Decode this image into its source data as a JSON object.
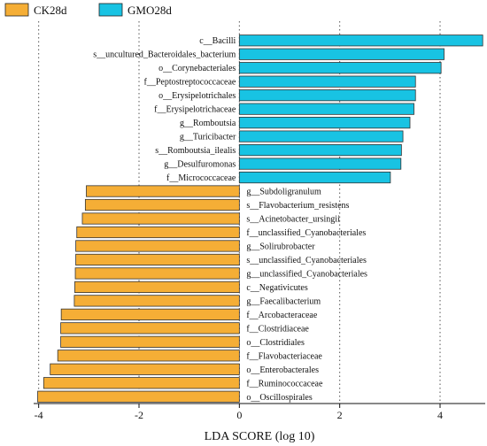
{
  "chart_data": {
    "type": "bar",
    "orientation": "horizontal",
    "xlabel": "LDA SCORE (log 10)",
    "xlim": [
      -4.1,
      4.9
    ],
    "xticks": [
      -4,
      -2,
      0,
      2,
      4
    ],
    "grid": "vertical dotted",
    "legend_position": "top-left",
    "legend": [
      {
        "name": "CK28d",
        "color": "#F5AE36"
      },
      {
        "name": "GMO28d",
        "color": "#18C3E3"
      }
    ],
    "series": [
      {
        "name": "GMO28d",
        "color": "#18C3E3",
        "categories": [
          "c__Bacilli",
          "s__uncultured_Bacteroidales_bacterium",
          "o__Corynebacteriales",
          "f__Peptostreptococcaceae",
          "o__Erysipelotrichales",
          "f__Erysipelotrichaceae",
          "g__Romboutsia",
          "g__Turicibacter",
          "s__Romboutsia_ilealis",
          "g__Desulfuromonas",
          "f__Micrococcaceae"
        ],
        "values": [
          4.85,
          4.08,
          4.02,
          3.51,
          3.51,
          3.48,
          3.4,
          3.26,
          3.23,
          3.22,
          3.01
        ]
      },
      {
        "name": "CK28d",
        "color": "#F5AE36",
        "categories": [
          "g__Subdoligranulum",
          "s__Flavobacterium_resistens",
          "s__Acinetobacter_ursingii",
          "f__unclassified_Cyanobacteriales",
          "g__Solirubrobacter",
          "s__unclassified_Cyanobacteriales",
          "g__unclassified_Cyanobacteriales",
          "c__Negativicutes",
          "g__Faecalibacterium",
          "f__Arcobacteraceae",
          "f__Clostridiaceae",
          "o__Clostridiales",
          "f__Flavobacteriaceae",
          "o__Enterobacterales",
          "f__Ruminococcaceae",
          "o__Oscillospirales"
        ],
        "values": [
          -3.05,
          -3.07,
          -3.13,
          -3.24,
          -3.26,
          -3.26,
          -3.27,
          -3.28,
          -3.29,
          -3.55,
          -3.56,
          -3.56,
          -3.62,
          -3.77,
          -3.9,
          -4.02
        ]
      }
    ]
  }
}
